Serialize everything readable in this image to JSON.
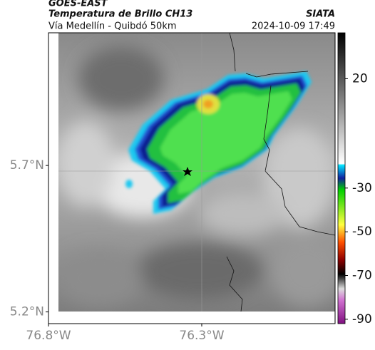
{
  "header": {
    "satellite": "GOES-EAST",
    "product": "Temperatura de Brillo CH13",
    "route": "Vía Medellín - Quibdó 50km",
    "source": "SIATA",
    "datetime": "2024-10-09 17:49"
  },
  "map": {
    "lon_lim": [
      -76.8,
      -75.865
    ],
    "lat_lim": [
      5.16,
      6.153
    ],
    "lat_ticks": [
      {
        "value": 5.7,
        "label": "5.7°N"
      },
      {
        "value": 5.2,
        "label": "5.2°N"
      }
    ],
    "lon_ticks": [
      {
        "value": -76.8,
        "label": "76.8°W"
      },
      {
        "value": -76.3,
        "label": "76.3°W"
      }
    ]
  },
  "colorbar": {
    "lim": [
      -92,
      41
    ],
    "ticks": [
      20,
      -30,
      -50,
      -70,
      -90
    ]
  }
}
